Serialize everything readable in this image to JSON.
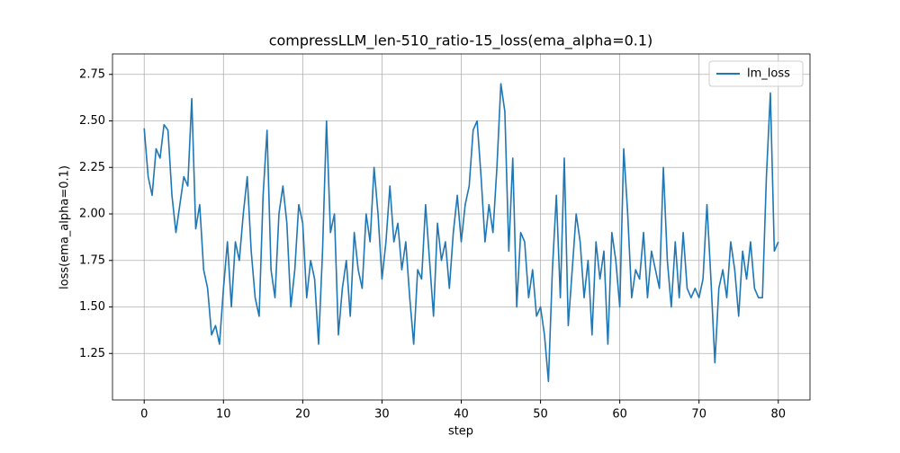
{
  "chart_data": {
    "type": "line",
    "title": "compressLLM_len-510_ratio-15_loss(ema_alpha=0.1)",
    "xlabel": "step",
    "ylabel": "loss(ema_alpha=0.1)",
    "x": [
      0,
      0.5,
      1,
      1.5,
      2,
      2.5,
      3,
      3.5,
      4,
      4.5,
      5,
      5.5,
      6,
      6.5,
      7,
      7.5,
      8,
      8.5,
      9,
      9.5,
      10,
      10.5,
      11,
      11.5,
      12,
      12.5,
      13,
      13.5,
      14,
      14.5,
      15,
      15.5,
      16,
      16.5,
      17,
      17.5,
      18,
      18.5,
      19,
      19.5,
      20,
      20.5,
      21,
      21.5,
      22,
      22.5,
      23,
      23.5,
      24,
      24.5,
      25,
      25.5,
      26,
      26.5,
      27,
      27.5,
      28,
      28.5,
      29,
      29.5,
      30,
      30.5,
      31,
      31.5,
      32,
      32.5,
      33,
      33.5,
      34,
      34.5,
      35,
      35.5,
      36,
      36.5,
      37,
      37.5,
      38,
      38.5,
      39,
      39.5,
      40,
      40.5,
      41,
      41.5,
      42,
      42.5,
      43,
      43.5,
      44,
      44.5,
      45,
      45.5,
      46,
      46.5,
      47,
      47.5,
      48,
      48.5,
      49,
      49.5,
      50,
      50.5,
      51,
      51.5,
      52,
      52.5,
      53,
      53.5,
      54,
      54.5,
      55,
      55.5,
      56,
      56.5,
      57,
      57.5,
      58,
      58.5,
      59,
      59.5,
      60,
      60.5,
      61,
      61.5,
      62,
      62.5,
      63,
      63.5,
      64,
      64.5,
      65,
      65.5,
      66,
      66.5,
      67,
      67.5,
      68,
      68.5,
      69,
      69.5,
      70,
      70.5,
      71,
      71.5,
      72,
      72.5,
      73,
      73.5,
      74,
      74.5,
      75,
      75.5,
      76,
      76.5,
      77,
      77.5,
      78,
      78.5,
      79,
      79.5,
      80
    ],
    "series": [
      {
        "name": "lm_loss",
        "color": "#1f77b4",
        "values": [
          2.46,
          2.2,
          2.1,
          2.35,
          2.3,
          2.48,
          2.45,
          2.1,
          1.9,
          2.05,
          2.2,
          2.15,
          2.62,
          1.92,
          2.05,
          1.7,
          1.6,
          1.35,
          1.4,
          1.3,
          1.6,
          1.85,
          1.5,
          1.85,
          1.75,
          2.0,
          2.2,
          1.8,
          1.55,
          1.45,
          2.1,
          2.45,
          1.7,
          1.55,
          2.0,
          2.15,
          1.95,
          1.5,
          1.7,
          2.05,
          1.95,
          1.55,
          1.75,
          1.65,
          1.3,
          1.8,
          2.5,
          1.9,
          2.0,
          1.35,
          1.6,
          1.75,
          1.45,
          1.9,
          1.7,
          1.6,
          2.0,
          1.85,
          2.25,
          2.0,
          1.65,
          1.85,
          2.15,
          1.85,
          1.95,
          1.7,
          1.85,
          1.55,
          1.3,
          1.7,
          1.65,
          2.05,
          1.75,
          1.45,
          1.95,
          1.75,
          1.85,
          1.6,
          1.9,
          2.1,
          1.85,
          2.05,
          2.15,
          2.45,
          2.5,
          2.2,
          1.85,
          2.05,
          1.9,
          2.25,
          2.7,
          2.55,
          1.8,
          2.3,
          1.5,
          1.9,
          1.85,
          1.55,
          1.7,
          1.45,
          1.5,
          1.35,
          1.1,
          1.7,
          2.1,
          1.55,
          2.3,
          1.4,
          1.7,
          2.0,
          1.85,
          1.55,
          1.75,
          1.35,
          1.85,
          1.65,
          1.8,
          1.3,
          1.9,
          1.75,
          1.5,
          2.35,
          2.0,
          1.55,
          1.7,
          1.65,
          1.9,
          1.55,
          1.8,
          1.7,
          1.6,
          2.25,
          1.75,
          1.5,
          1.85,
          1.55,
          1.9,
          1.6,
          1.55,
          1.6,
          1.55,
          1.65,
          2.05,
          1.65,
          1.2,
          1.6,
          1.7,
          1.55,
          1.85,
          1.7,
          1.45,
          1.8,
          1.65,
          1.85,
          1.6,
          1.55,
          1.55,
          2.2,
          2.65,
          1.8,
          1.85
        ]
      }
    ],
    "xlim": [
      -4,
      84
    ],
    "xticks": [
      0,
      10,
      20,
      30,
      40,
      50,
      60,
      70,
      80
    ],
    "ylim": [
      1.0,
      2.86
    ],
    "yticks": [
      1.25,
      {
        "value": 1.5,
        "label": "1.50"
      },
      1.75,
      {
        "value": 2,
        "label": "2.00"
      },
      2.25,
      {
        "value": 2.5,
        "label": "2.50"
      },
      2.75
    ],
    "grid": true,
    "legend": "upper right"
  }
}
